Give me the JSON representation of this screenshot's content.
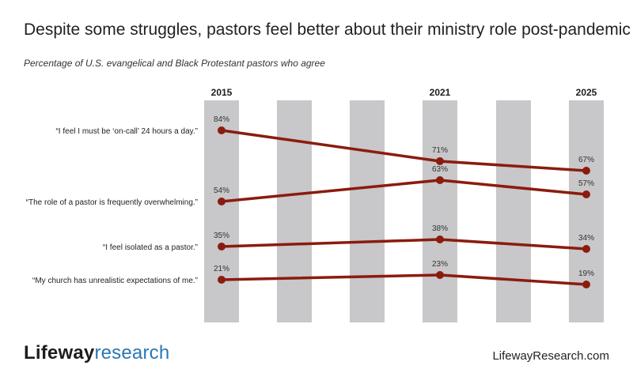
{
  "title": "Despite some struggles, pastors feel better about their ministry role post-pandemic",
  "subtitle": "Percentage of U.S. evangelical and Black Protestant pastors who agree",
  "logo": {
    "part1": "Lifeway",
    "part2": "research"
  },
  "website": "LifewayResearch.com",
  "colors": {
    "line": "#8a1c0f",
    "band": "#c8c7c9"
  },
  "chart_data": {
    "type": "line",
    "x": [
      "2015",
      "2021",
      "2025"
    ],
    "ylim": [
      0,
      100
    ],
    "grid": false,
    "legend": "none",
    "series": [
      {
        "name": "“I feel I must be ‘on-call’ 24 hours a day.”",
        "values": [
          84,
          71,
          67
        ],
        "labels": [
          "84%",
          "71%",
          "67%"
        ]
      },
      {
        "name": "“The role of a pastor is frequently overwhelming.”",
        "values": [
          54,
          63,
          57
        ],
        "labels": [
          "54%",
          "63%",
          "57%"
        ]
      },
      {
        "name": "“I feel isolated as a pastor.”",
        "values": [
          35,
          38,
          34
        ],
        "labels": [
          "35%",
          "38%",
          "34%"
        ]
      },
      {
        "name": "“My church has unrealistic expectations of me.”",
        "values": [
          21,
          23,
          19
        ],
        "labels": [
          "21%",
          "23%",
          "19%"
        ]
      }
    ]
  }
}
